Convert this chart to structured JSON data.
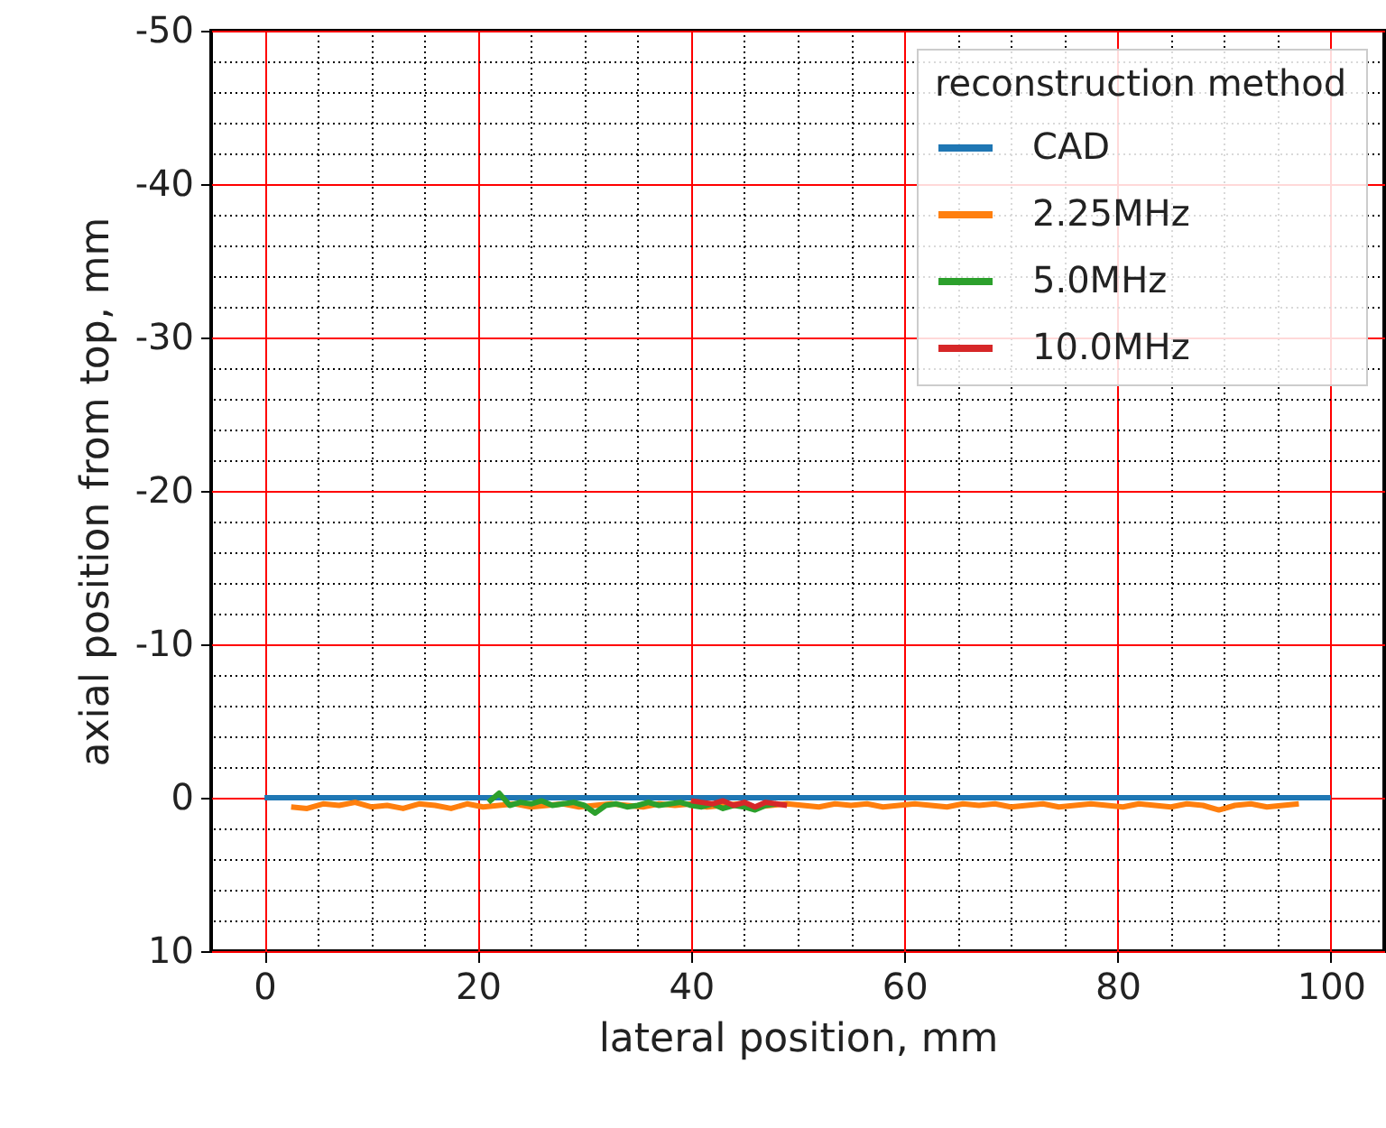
{
  "chart_data": {
    "type": "line",
    "xlabel": "lateral position, mm",
    "ylabel": "axial position from top, mm",
    "legend_title": "reconstruction method",
    "xlim": [
      -5,
      105
    ],
    "xticks": [
      0,
      20,
      40,
      60,
      80,
      100
    ],
    "ylim": [
      10,
      -50
    ],
    "yticks": [
      10,
      0,
      -10,
      -20,
      -30,
      -40,
      -50
    ],
    "grid": true,
    "legend": "top right",
    "line_style": "solid",
    "series": [
      {
        "name": "CAD",
        "color": "#1f77b4",
        "x": [
          0,
          100
        ],
        "values": [
          0,
          0
        ]
      },
      {
        "name": "2.25MHz",
        "color": "#ff7f0e",
        "x": [
          2.5,
          4,
          5.5,
          7,
          8.5,
          10,
          11.5,
          13,
          14.5,
          16,
          17.5,
          19,
          20.5,
          22,
          23.5,
          25,
          26.5,
          28,
          29.5,
          31,
          32.5,
          34,
          35.5,
          37,
          38.5,
          40,
          41.5,
          43,
          44.5,
          46,
          47.5,
          49,
          50.5,
          52,
          53.5,
          55,
          56.5,
          58,
          59.5,
          61,
          62.5,
          64,
          65.5,
          67,
          68.5,
          70,
          71.5,
          73,
          74.5,
          76,
          77.5,
          79,
          80.5,
          82,
          83.5,
          85,
          86.5,
          88,
          89.5,
          91,
          92.5,
          94,
          95.5,
          97
        ],
        "values": [
          0.6,
          0.7,
          0.4,
          0.5,
          0.3,
          0.6,
          0.5,
          0.7,
          0.4,
          0.5,
          0.7,
          0.4,
          0.6,
          0.5,
          0.4,
          0.6,
          0.5,
          0.4,
          0.6,
          0.5,
          0.4,
          0.5,
          0.6,
          0.4,
          0.5,
          0.4,
          0.6,
          0.5,
          0.4,
          0.6,
          0.5,
          0.4,
          0.5,
          0.6,
          0.4,
          0.5,
          0.4,
          0.6,
          0.5,
          0.4,
          0.5,
          0.6,
          0.4,
          0.5,
          0.4,
          0.6,
          0.5,
          0.4,
          0.6,
          0.5,
          0.4,
          0.5,
          0.6,
          0.4,
          0.5,
          0.6,
          0.4,
          0.5,
          0.8,
          0.5,
          0.4,
          0.6,
          0.5,
          0.4
        ]
      },
      {
        "name": "5.0MHz",
        "color": "#2ca02c",
        "x": [
          21,
          22,
          23,
          24,
          25,
          26,
          27,
          28,
          29,
          30,
          31,
          32,
          33,
          34,
          35,
          36,
          37,
          38,
          39,
          40,
          41,
          42,
          43,
          44,
          45,
          46,
          47,
          48
        ],
        "values": [
          0.3,
          -0.3,
          0.5,
          0.3,
          0.4,
          0.2,
          0.5,
          0.4,
          0.3,
          0.5,
          1.0,
          0.5,
          0.4,
          0.6,
          0.5,
          0.3,
          0.5,
          0.4,
          0.3,
          0.5,
          0.6,
          0.4,
          0.7,
          0.5,
          0.6,
          0.8,
          0.5,
          0.4
        ]
      },
      {
        "name": "10.0MHz",
        "color": "#d62728",
        "x": [
          40,
          41,
          42,
          43,
          44,
          45,
          46,
          47,
          48,
          49
        ],
        "values": [
          0.2,
          0.3,
          0.4,
          0.2,
          0.5,
          0.3,
          0.6,
          0.3,
          0.4,
          0.5
        ]
      }
    ]
  }
}
